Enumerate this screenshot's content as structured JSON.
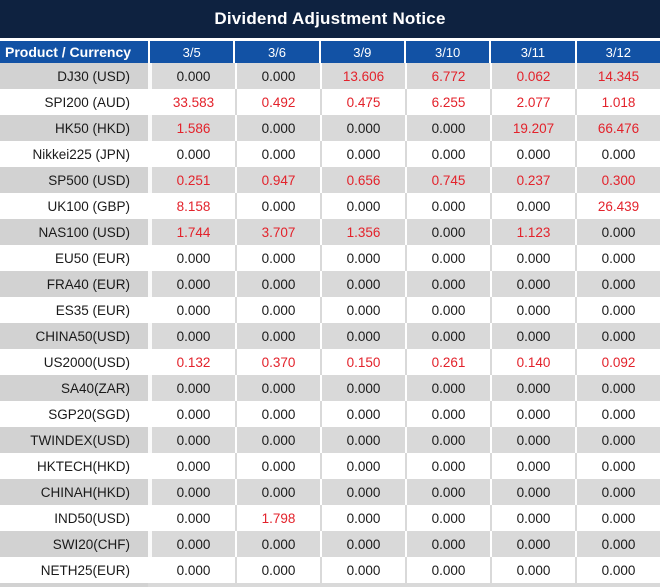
{
  "title": "Dividend Adjustment Notice",
  "header": {
    "product_label": "Product / Currency",
    "dates": [
      "3/5",
      "3/6",
      "3/9",
      "3/10",
      "3/11",
      "3/12"
    ]
  },
  "rows": [
    {
      "product": "DJ30 (USD)",
      "values": [
        "0.000",
        "0.000",
        "13.606",
        "6.772",
        "0.062",
        "14.345"
      ],
      "red": [
        false,
        false,
        true,
        true,
        true,
        true
      ]
    },
    {
      "product": "SPI200 (AUD)",
      "values": [
        "33.583",
        "0.492",
        "0.475",
        "6.255",
        "2.077",
        "1.018"
      ],
      "red": [
        true,
        true,
        true,
        true,
        true,
        true
      ]
    },
    {
      "product": "HK50 (HKD)",
      "values": [
        "1.586",
        "0.000",
        "0.000",
        "0.000",
        "19.207",
        "66.476"
      ],
      "red": [
        true,
        false,
        false,
        false,
        true,
        true
      ]
    },
    {
      "product": "Nikkei225 (JPN)",
      "values": [
        "0.000",
        "0.000",
        "0.000",
        "0.000",
        "0.000",
        "0.000"
      ],
      "red": [
        false,
        false,
        false,
        false,
        false,
        false
      ]
    },
    {
      "product": "SP500 (USD)",
      "values": [
        "0.251",
        "0.947",
        "0.656",
        "0.745",
        "0.237",
        "0.300"
      ],
      "red": [
        true,
        true,
        true,
        true,
        true,
        true
      ]
    },
    {
      "product": "UK100 (GBP)",
      "values": [
        "8.158",
        "0.000",
        "0.000",
        "0.000",
        "0.000",
        "26.439"
      ],
      "red": [
        true,
        false,
        false,
        false,
        false,
        true
      ]
    },
    {
      "product": "NAS100 (USD)",
      "values": [
        "1.744",
        "3.707",
        "1.356",
        "0.000",
        "1.123",
        "0.000"
      ],
      "red": [
        true,
        true,
        true,
        false,
        true,
        false
      ]
    },
    {
      "product": "EU50 (EUR)",
      "values": [
        "0.000",
        "0.000",
        "0.000",
        "0.000",
        "0.000",
        "0.000"
      ],
      "red": [
        false,
        false,
        false,
        false,
        false,
        false
      ]
    },
    {
      "product": "FRA40 (EUR)",
      "values": [
        "0.000",
        "0.000",
        "0.000",
        "0.000",
        "0.000",
        "0.000"
      ],
      "red": [
        false,
        false,
        false,
        false,
        false,
        false
      ]
    },
    {
      "product": "ES35 (EUR)",
      "values": [
        "0.000",
        "0.000",
        "0.000",
        "0.000",
        "0.000",
        "0.000"
      ],
      "red": [
        false,
        false,
        false,
        false,
        false,
        false
      ]
    },
    {
      "product": "CHINA50(USD)",
      "values": [
        "0.000",
        "0.000",
        "0.000",
        "0.000",
        "0.000",
        "0.000"
      ],
      "red": [
        false,
        false,
        false,
        false,
        false,
        false
      ]
    },
    {
      "product": "US2000(USD)",
      "values": [
        "0.132",
        "0.370",
        "0.150",
        "0.261",
        "0.140",
        "0.092"
      ],
      "red": [
        true,
        true,
        true,
        true,
        true,
        true
      ]
    },
    {
      "product": "SA40(ZAR)",
      "values": [
        "0.000",
        "0.000",
        "0.000",
        "0.000",
        "0.000",
        "0.000"
      ],
      "red": [
        false,
        false,
        false,
        false,
        false,
        false
      ]
    },
    {
      "product": "SGP20(SGD)",
      "values": [
        "0.000",
        "0.000",
        "0.000",
        "0.000",
        "0.000",
        "0.000"
      ],
      "red": [
        false,
        false,
        false,
        false,
        false,
        false
      ]
    },
    {
      "product": "TWINDEX(USD)",
      "values": [
        "0.000",
        "0.000",
        "0.000",
        "0.000",
        "0.000",
        "0.000"
      ],
      "red": [
        false,
        false,
        false,
        false,
        false,
        false
      ]
    },
    {
      "product": "HKTECH(HKD)",
      "values": [
        "0.000",
        "0.000",
        "0.000",
        "0.000",
        "0.000",
        "0.000"
      ],
      "red": [
        false,
        false,
        false,
        false,
        false,
        false
      ]
    },
    {
      "product": "CHINAH(HKD)",
      "values": [
        "0.000",
        "0.000",
        "0.000",
        "0.000",
        "0.000",
        "0.000"
      ],
      "red": [
        false,
        false,
        false,
        false,
        false,
        false
      ]
    },
    {
      "product": "IND50(USD)",
      "values": [
        "0.000",
        "1.798",
        "0.000",
        "0.000",
        "0.000",
        "0.000"
      ],
      "red": [
        false,
        true,
        false,
        false,
        false,
        false
      ]
    },
    {
      "product": "SWI20(CHF)",
      "values": [
        "0.000",
        "0.000",
        "0.000",
        "0.000",
        "0.000",
        "0.000"
      ],
      "red": [
        false,
        false,
        false,
        false,
        false,
        false
      ]
    },
    {
      "product": "NETH25(EUR)",
      "values": [
        "0.000",
        "0.000",
        "0.000",
        "0.000",
        "0.000",
        "0.000"
      ],
      "red": [
        false,
        false,
        false,
        false,
        false,
        false
      ]
    }
  ],
  "colors": {
    "title_bar": "#0e2240",
    "header_blue": "#1252a5",
    "stripe_gray_product": "#d2d2d2",
    "stripe_gray_values": "#d9d9d9",
    "negative_red": "#e3222b",
    "text_black": "#1a1a1a"
  }
}
